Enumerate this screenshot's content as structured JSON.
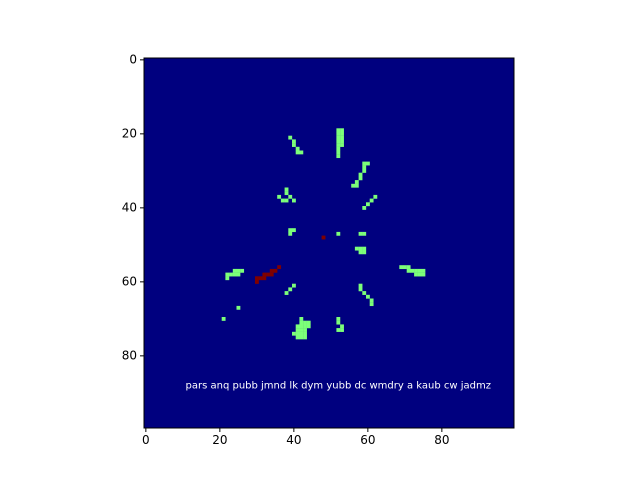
{
  "chart_data": {
    "type": "heatmap",
    "title": "",
    "xlabel": "",
    "ylabel": "",
    "xlim": [
      -0.5,
      99.5
    ],
    "ylim": [
      99.5,
      -0.5
    ],
    "x_ticks": [
      0,
      20,
      40,
      60,
      80
    ],
    "y_ticks": [
      0,
      20,
      40,
      60,
      80
    ],
    "grid": false,
    "legend": "none",
    "colormap": "jet",
    "colors": {
      "background": "#00007f",
      "mid": "#7cff79",
      "high": "#7f0000"
    },
    "annotation": {
      "text": "pars anq pubb jmnd lk dym yubb dc wmdry a kaub cw jadmz",
      "x": 52,
      "y": 88,
      "color": "#ffffff"
    },
    "cells": {
      "mid": [
        [
          52,
          19
        ],
        [
          53,
          19
        ],
        [
          52,
          20
        ],
        [
          53,
          20
        ],
        [
          52,
          21
        ],
        [
          53,
          21
        ],
        [
          52,
          22
        ],
        [
          53,
          22
        ],
        [
          52,
          23
        ],
        [
          53,
          23
        ],
        [
          52,
          24
        ],
        [
          52,
          25
        ],
        [
          52,
          26
        ],
        [
          39,
          21
        ],
        [
          40,
          22
        ],
        [
          40,
          23
        ],
        [
          41,
          24
        ],
        [
          41,
          25
        ],
        [
          42,
          25
        ],
        [
          59,
          28
        ],
        [
          59,
          29
        ],
        [
          60,
          28
        ],
        [
          59,
          30
        ],
        [
          58,
          31
        ],
        [
          58,
          32
        ],
        [
          57,
          33
        ],
        [
          57,
          34
        ],
        [
          56,
          34
        ],
        [
          38,
          35
        ],
        [
          38,
          36
        ],
        [
          39,
          37
        ],
        [
          36,
          37
        ],
        [
          37,
          38
        ],
        [
          38,
          38
        ],
        [
          40,
          38
        ],
        [
          62,
          37
        ],
        [
          61,
          38
        ],
        [
          60,
          39
        ],
        [
          59,
          40
        ],
        [
          39,
          46
        ],
        [
          40,
          46
        ],
        [
          39,
          47
        ],
        [
          52,
          47
        ],
        [
          58,
          47
        ],
        [
          59,
          47
        ],
        [
          57,
          51
        ],
        [
          58,
          51
        ],
        [
          59,
          51
        ],
        [
          58,
          52
        ],
        [
          59,
          52
        ],
        [
          69,
          56
        ],
        [
          70,
          56
        ],
        [
          71,
          56
        ],
        [
          71,
          57
        ],
        [
          72,
          57
        ],
        [
          73,
          57
        ],
        [
          74,
          57
        ],
        [
          75,
          57
        ],
        [
          73,
          58
        ],
        [
          74,
          58
        ],
        [
          75,
          58
        ],
        [
          24,
          57
        ],
        [
          25,
          57
        ],
        [
          26,
          57
        ],
        [
          22,
          58
        ],
        [
          23,
          58
        ],
        [
          24,
          58
        ],
        [
          25,
          58
        ],
        [
          22,
          59
        ],
        [
          58,
          61
        ],
        [
          58,
          62
        ],
        [
          59,
          63
        ],
        [
          60,
          64
        ],
        [
          61,
          65
        ],
        [
          61,
          66
        ],
        [
          40,
          61
        ],
        [
          39,
          62
        ],
        [
          38,
          63
        ],
        [
          25,
          67
        ],
        [
          21,
          70
        ],
        [
          42,
          70
        ],
        [
          42,
          71
        ],
        [
          43,
          71
        ],
        [
          44,
          71
        ],
        [
          41,
          72
        ],
        [
          42,
          72
        ],
        [
          43,
          72
        ],
        [
          44,
          72
        ],
        [
          41,
          73
        ],
        [
          42,
          73
        ],
        [
          43,
          73
        ],
        [
          40,
          74
        ],
        [
          41,
          74
        ],
        [
          42,
          74
        ],
        [
          43,
          74
        ],
        [
          41,
          75
        ],
        [
          42,
          75
        ],
        [
          43,
          75
        ],
        [
          52,
          70
        ],
        [
          52,
          71
        ],
        [
          53,
          72
        ],
        [
          52,
          73
        ],
        [
          53,
          73
        ]
      ],
      "high": [
        [
          48,
          48
        ],
        [
          36,
          56
        ],
        [
          34,
          57
        ],
        [
          35,
          57
        ],
        [
          32,
          58
        ],
        [
          33,
          58
        ],
        [
          34,
          58
        ],
        [
          30,
          59
        ],
        [
          31,
          59
        ],
        [
          32,
          59
        ],
        [
          30,
          60
        ]
      ]
    }
  }
}
